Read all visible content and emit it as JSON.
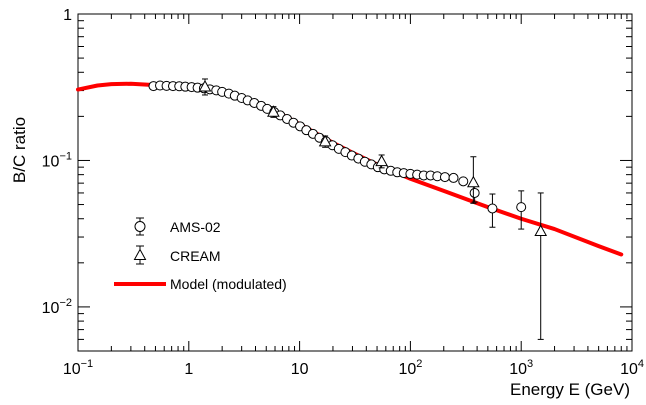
{
  "chart_data": {
    "type": "scatter",
    "xlabel": "Energy E (GeV)",
    "ylabel": "B/C ratio",
    "x_scale": "log",
    "y_scale": "log",
    "xlim": [
      0.1,
      10000
    ],
    "ylim": [
      0.005,
      1
    ],
    "grid": false,
    "legend_position": "lower-left",
    "x_ticks": [
      {
        "value": 0.1,
        "base": "10",
        "exp": "−1"
      },
      {
        "value": 1,
        "base": "1",
        "exp": ""
      },
      {
        "value": 10,
        "base": "10",
        "exp": ""
      },
      {
        "value": 100,
        "base": "10",
        "exp": "2"
      },
      {
        "value": 1000,
        "base": "10",
        "exp": "3"
      },
      {
        "value": 10000,
        "base": "10",
        "exp": "4"
      }
    ],
    "y_ticks": [
      {
        "value": 1,
        "base": "1",
        "exp": ""
      },
      {
        "value": 0.1,
        "base": "10",
        "exp": "−1"
      },
      {
        "value": 0.01,
        "base": "10",
        "exp": "−2"
      }
    ],
    "series": [
      {
        "name": "AMS-02",
        "marker": "open-circle",
        "color": "#000000",
        "points": [
          {
            "x": 0.48,
            "y": 0.322
          },
          {
            "x": 0.55,
            "y": 0.325
          },
          {
            "x": 0.63,
            "y": 0.323
          },
          {
            "x": 0.72,
            "y": 0.322
          },
          {
            "x": 0.82,
            "y": 0.321
          },
          {
            "x": 0.93,
            "y": 0.319
          },
          {
            "x": 1.06,
            "y": 0.317
          },
          {
            "x": 1.2,
            "y": 0.314
          },
          {
            "x": 1.37,
            "y": 0.311
          },
          {
            "x": 1.55,
            "y": 0.306
          },
          {
            "x": 1.77,
            "y": 0.301
          },
          {
            "x": 2.0,
            "y": 0.294
          },
          {
            "x": 2.3,
            "y": 0.286
          },
          {
            "x": 2.6,
            "y": 0.277
          },
          {
            "x": 3.0,
            "y": 0.267
          },
          {
            "x": 3.4,
            "y": 0.257
          },
          {
            "x": 3.9,
            "y": 0.247
          },
          {
            "x": 4.5,
            "y": 0.236
          },
          {
            "x": 5.1,
            "y": 0.225
          },
          {
            "x": 5.9,
            "y": 0.214
          },
          {
            "x": 6.7,
            "y": 0.203
          },
          {
            "x": 7.7,
            "y": 0.192
          },
          {
            "x": 8.8,
            "y": 0.181
          },
          {
            "x": 10.1,
            "y": 0.171
          },
          {
            "x": 11.5,
            "y": 0.161
          },
          {
            "x": 13.2,
            "y": 0.152
          },
          {
            "x": 15.1,
            "y": 0.143
          },
          {
            "x": 17.3,
            "y": 0.135
          },
          {
            "x": 19.8,
            "y": 0.127
          },
          {
            "x": 22.6,
            "y": 0.12
          },
          {
            "x": 25.9,
            "y": 0.114
          },
          {
            "x": 29.6,
            "y": 0.108
          },
          {
            "x": 33.9,
            "y": 0.103
          },
          {
            "x": 38.8,
            "y": 0.098
          },
          {
            "x": 44.4,
            "y": 0.094
          },
          {
            "x": 50.8,
            "y": 0.09
          },
          {
            "x": 58.1,
            "y": 0.087
          },
          {
            "x": 66.5,
            "y": 0.085
          },
          {
            "x": 76.1,
            "y": 0.083
          },
          {
            "x": 87.1,
            "y": 0.082
          },
          {
            "x": 100,
            "y": 0.081
          },
          {
            "x": 115,
            "y": 0.08
          },
          {
            "x": 132,
            "y": 0.079
          },
          {
            "x": 152,
            "y": 0.079
          },
          {
            "x": 175,
            "y": 0.078
          },
          {
            "x": 205,
            "y": 0.077
          },
          {
            "x": 245,
            "y": 0.076
          },
          {
            "x": 300,
            "y": 0.072
          },
          {
            "x": 380,
            "y": 0.06,
            "err_lo": 0.008,
            "err_hi": 0.008
          },
          {
            "x": 550,
            "y": 0.047,
            "err_lo": 0.012,
            "err_hi": 0.012
          },
          {
            "x": 1000,
            "y": 0.048,
            "err_lo": 0.014,
            "err_hi": 0.014
          }
        ]
      },
      {
        "name": "CREAM",
        "marker": "open-triangle",
        "color": "#000000",
        "points": [
          {
            "x": 1.4,
            "y": 0.32,
            "err_lo": 0.04,
            "err_hi": 0.04
          },
          {
            "x": 5.8,
            "y": 0.215,
            "err_lo": 0.018,
            "err_hi": 0.018
          },
          {
            "x": 17,
            "y": 0.135,
            "err_lo": 0.012,
            "err_hi": 0.012
          },
          {
            "x": 55,
            "y": 0.099,
            "err_lo": 0.01,
            "err_hi": 0.01
          },
          {
            "x": 370,
            "y": 0.071,
            "err_lo": 0.02,
            "err_hi": 0.035
          },
          {
            "x": 1500,
            "y": 0.033,
            "err_lo": 0.027,
            "err_hi": 0.027
          }
        ]
      },
      {
        "name": "Model (modulated)",
        "type": "line",
        "color": "#ff0000",
        "points": [
          {
            "x": 0.1,
            "y": 0.305
          },
          {
            "x": 0.15,
            "y": 0.325
          },
          {
            "x": 0.2,
            "y": 0.332
          },
          {
            "x": 0.3,
            "y": 0.334
          },
          {
            "x": 0.5,
            "y": 0.327
          },
          {
            "x": 0.7,
            "y": 0.321
          },
          {
            "x": 1,
            "y": 0.313
          },
          {
            "x": 1.5,
            "y": 0.302
          },
          {
            "x": 2,
            "y": 0.29
          },
          {
            "x": 3,
            "y": 0.268
          },
          {
            "x": 5,
            "y": 0.232
          },
          {
            "x": 7,
            "y": 0.205
          },
          {
            "x": 10,
            "y": 0.177
          },
          {
            "x": 20,
            "y": 0.132
          },
          {
            "x": 30,
            "y": 0.113
          },
          {
            "x": 50,
            "y": 0.094
          },
          {
            "x": 100,
            "y": 0.075
          },
          {
            "x": 200,
            "y": 0.062
          },
          {
            "x": 500,
            "y": 0.048
          },
          {
            "x": 1000,
            "y": 0.04
          },
          {
            "x": 2000,
            "y": 0.034
          },
          {
            "x": 5000,
            "y": 0.026
          },
          {
            "x": 8000,
            "y": 0.0228
          }
        ]
      }
    ]
  }
}
